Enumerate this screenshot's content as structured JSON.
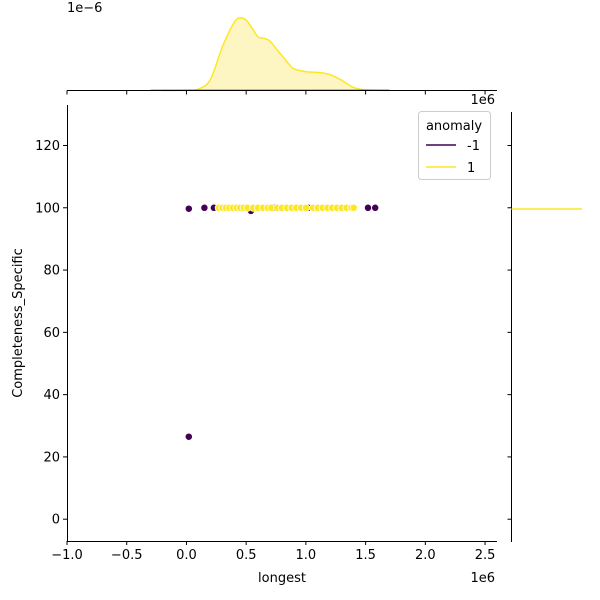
{
  "chart_data": {
    "type": "scatter",
    "subtype": "jointplot",
    "xlabel": "longest",
    "ylabel": "Completeness_Specific",
    "x_offset_label": "1e6",
    "x_ticks": [
      -1.0,
      -0.5,
      0.0,
      0.5,
      1.0,
      1.5,
      2.0,
      2.5
    ],
    "x_tick_labels": [
      "−1.0",
      "−0.5",
      "0.0",
      "0.5",
      "1.0",
      "1.5",
      "2.0",
      "2.5"
    ],
    "xlim": [
      -1000000,
      2600000
    ],
    "y_ticks": [
      0,
      20,
      40,
      60,
      80,
      100,
      120
    ],
    "y_tick_labels": [
      "0",
      "20",
      "40",
      "60",
      "80",
      "100",
      "120"
    ],
    "ylim": [
      -7,
      133
    ],
    "top_margin_offset_label": "1e−6",
    "right_margin_offset_label": "1e6",
    "legend": {
      "title": "anomaly",
      "location": "upper right",
      "entries": [
        {
          "label": "-1",
          "color": "#440154"
        },
        {
          "label": "1",
          "color": "#fde725"
        }
      ]
    },
    "series": [
      {
        "name": "-1",
        "color": "#440154",
        "points": [
          [
            20000,
            26.5
          ],
          [
            20000,
            99.7
          ],
          [
            150000,
            100
          ],
          [
            230000,
            100
          ],
          [
            540000,
            99
          ],
          [
            730000,
            100
          ],
          [
            1020000,
            100
          ],
          [
            1520000,
            100
          ],
          [
            1580000,
            100
          ]
        ]
      },
      {
        "name": "1",
        "color": "#fde725",
        "points": [
          [
            270000,
            100
          ],
          [
            300000,
            100
          ],
          [
            330000,
            100
          ],
          [
            360000,
            100
          ],
          [
            390000,
            100
          ],
          [
            420000,
            100
          ],
          [
            450000,
            100
          ],
          [
            480000,
            100
          ],
          [
            510000,
            100
          ],
          [
            560000,
            100
          ],
          [
            600000,
            100
          ],
          [
            640000,
            100
          ],
          [
            680000,
            100
          ],
          [
            710000,
            100
          ],
          [
            760000,
            100
          ],
          [
            800000,
            100
          ],
          [
            840000,
            100
          ],
          [
            880000,
            100
          ],
          [
            920000,
            100
          ],
          [
            960000,
            100
          ],
          [
            1000000,
            100
          ],
          [
            1060000,
            100
          ],
          [
            1100000,
            100
          ],
          [
            1140000,
            100
          ],
          [
            1180000,
            100
          ],
          [
            1220000,
            100
          ],
          [
            1260000,
            100
          ],
          [
            1300000,
            100
          ],
          [
            1340000,
            100
          ],
          [
            1380000,
            100
          ],
          [
            1400000,
            100
          ]
        ]
      }
    ],
    "marginal_x_density": {
      "series": "1",
      "color": "#fde725",
      "fill": "#fdf5c2",
      "x": [
        -200000,
        0,
        100000,
        200000,
        300000,
        400000,
        450000,
        500000,
        550000,
        600000,
        650000,
        700000,
        750000,
        800000,
        850000,
        900000,
        1000000,
        1100000,
        1200000,
        1300000,
        1400000,
        1500000,
        1700000
      ],
      "density": [
        0.0,
        0.003,
        0.02,
        0.15,
        0.6,
        0.94,
        1.0,
        0.97,
        0.86,
        0.74,
        0.72,
        0.68,
        0.58,
        0.48,
        0.38,
        0.3,
        0.26,
        0.25,
        0.22,
        0.14,
        0.04,
        0.01,
        0.0
      ]
    }
  }
}
